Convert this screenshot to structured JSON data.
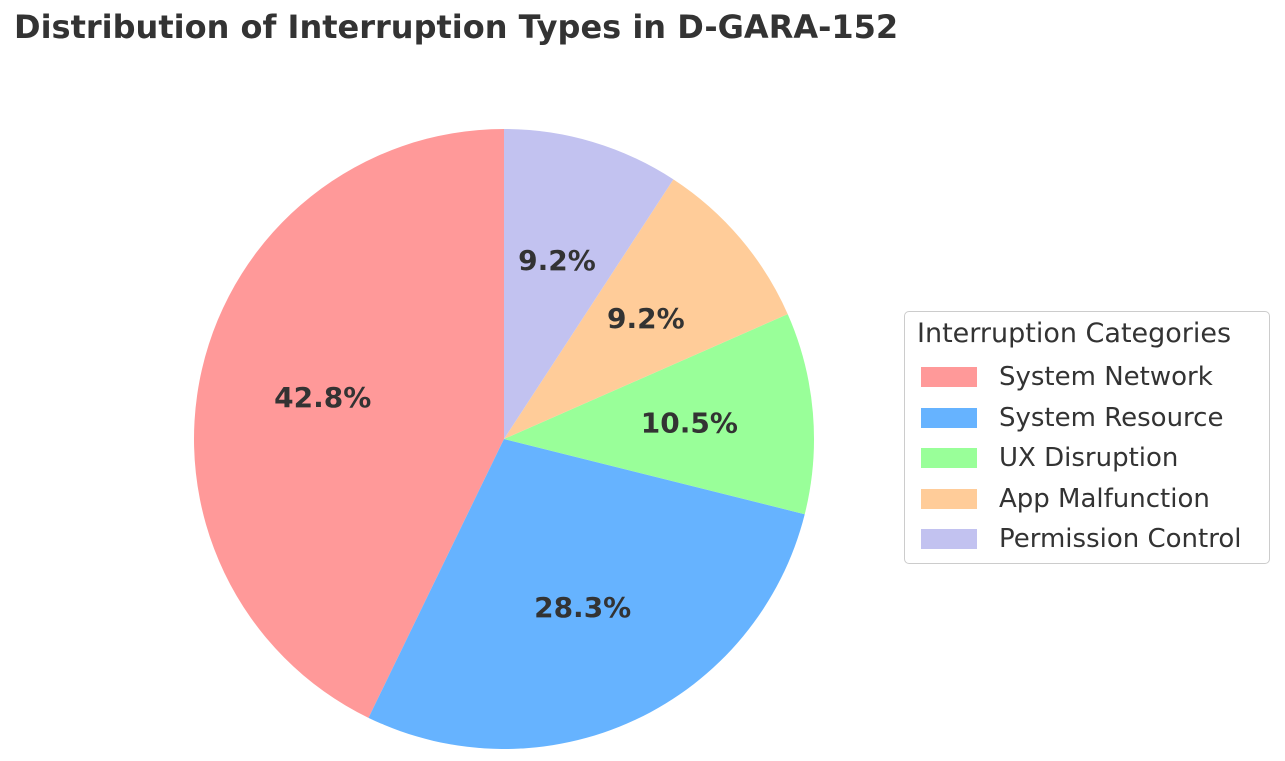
{
  "title": "Distribution of Interruption Types in D-GARA-152",
  "legend": {
    "title": "Interruption Categories",
    "items": [
      {
        "label": "System Network",
        "color": "#ff9999"
      },
      {
        "label": "System Resource",
        "color": "#66b3ff"
      },
      {
        "label": "UX Disruption",
        "color": "#99ff99"
      },
      {
        "label": "App Malfunction",
        "color": "#ffcc99"
      },
      {
        "label": "Permission Control",
        "color": "#c2c2f0"
      }
    ]
  },
  "chart_data": {
    "type": "pie",
    "title": "Distribution of Interruption Types in D-GARA-152",
    "categories": [
      "System Network",
      "System Resource",
      "UX Disruption",
      "App Malfunction",
      "Permission Control"
    ],
    "values": [
      42.8,
      28.3,
      10.5,
      9.2,
      9.2
    ],
    "labels": [
      "42.8%",
      "28.3%",
      "10.5%",
      "9.2%",
      "9.2%"
    ],
    "colors": [
      "#ff9999",
      "#66b3ff",
      "#99ff99",
      "#ffcc99",
      "#c2c2f0"
    ],
    "start_angle": 90,
    "direction": "counterclockwise",
    "legend_title": "Interruption Categories",
    "legend_position": "right"
  }
}
